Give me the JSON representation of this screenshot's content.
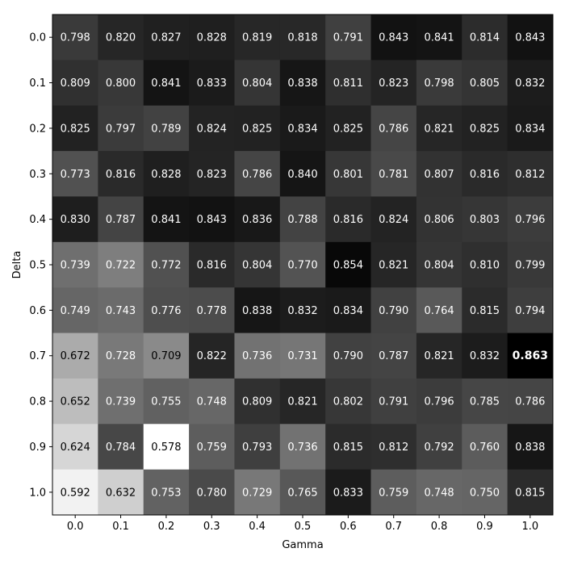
{
  "chart_data": {
    "type": "heatmap",
    "colormap": "gray_r",
    "xlabel": "Gamma",
    "ylabel": "Delta",
    "x": [
      "0.0",
      "0.1",
      "0.2",
      "0.3",
      "0.4",
      "0.5",
      "0.6",
      "0.7",
      "0.8",
      "0.9",
      "1.0"
    ],
    "y": [
      "0.0",
      "0.1",
      "0.2",
      "0.3",
      "0.4",
      "0.5",
      "0.6",
      "0.7",
      "0.8",
      "0.9",
      "1.0"
    ],
    "values": [
      [
        0.798,
        0.82,
        0.827,
        0.828,
        0.819,
        0.818,
        0.791,
        0.843,
        0.841,
        0.814,
        0.843
      ],
      [
        0.809,
        0.8,
        0.841,
        0.833,
        0.804,
        0.838,
        0.811,
        0.823,
        0.798,
        0.805,
        0.832
      ],
      [
        0.825,
        0.797,
        0.789,
        0.824,
        0.825,
        0.834,
        0.825,
        0.786,
        0.821,
        0.825,
        0.834
      ],
      [
        0.773,
        0.816,
        0.828,
        0.823,
        0.786,
        0.84,
        0.801,
        0.781,
        0.807,
        0.816,
        0.812
      ],
      [
        0.83,
        0.787,
        0.841,
        0.843,
        0.836,
        0.788,
        0.816,
        0.824,
        0.806,
        0.803,
        0.796
      ],
      [
        0.739,
        0.722,
        0.772,
        0.816,
        0.804,
        0.77,
        0.854,
        0.821,
        0.804,
        0.81,
        0.799
      ],
      [
        0.749,
        0.743,
        0.776,
        0.778,
        0.838,
        0.832,
        0.834,
        0.79,
        0.764,
        0.815,
        0.794
      ],
      [
        0.672,
        0.728,
        0.709,
        0.822,
        0.736,
        0.731,
        0.79,
        0.787,
        0.821,
        0.832,
        0.863
      ],
      [
        0.652,
        0.739,
        0.755,
        0.748,
        0.809,
        0.821,
        0.802,
        0.791,
        0.796,
        0.785,
        0.786
      ],
      [
        0.624,
        0.784,
        0.578,
        0.759,
        0.793,
        0.736,
        0.815,
        0.812,
        0.792,
        0.76,
        0.838
      ],
      [
        0.592,
        0.632,
        0.753,
        0.78,
        0.729,
        0.765,
        0.833,
        0.759,
        0.748,
        0.75,
        0.815
      ]
    ],
    "vmin": 0.578,
    "vmax": 0.863,
    "highlight": {
      "row": 7,
      "col": 10,
      "value": 0.863
    }
  }
}
